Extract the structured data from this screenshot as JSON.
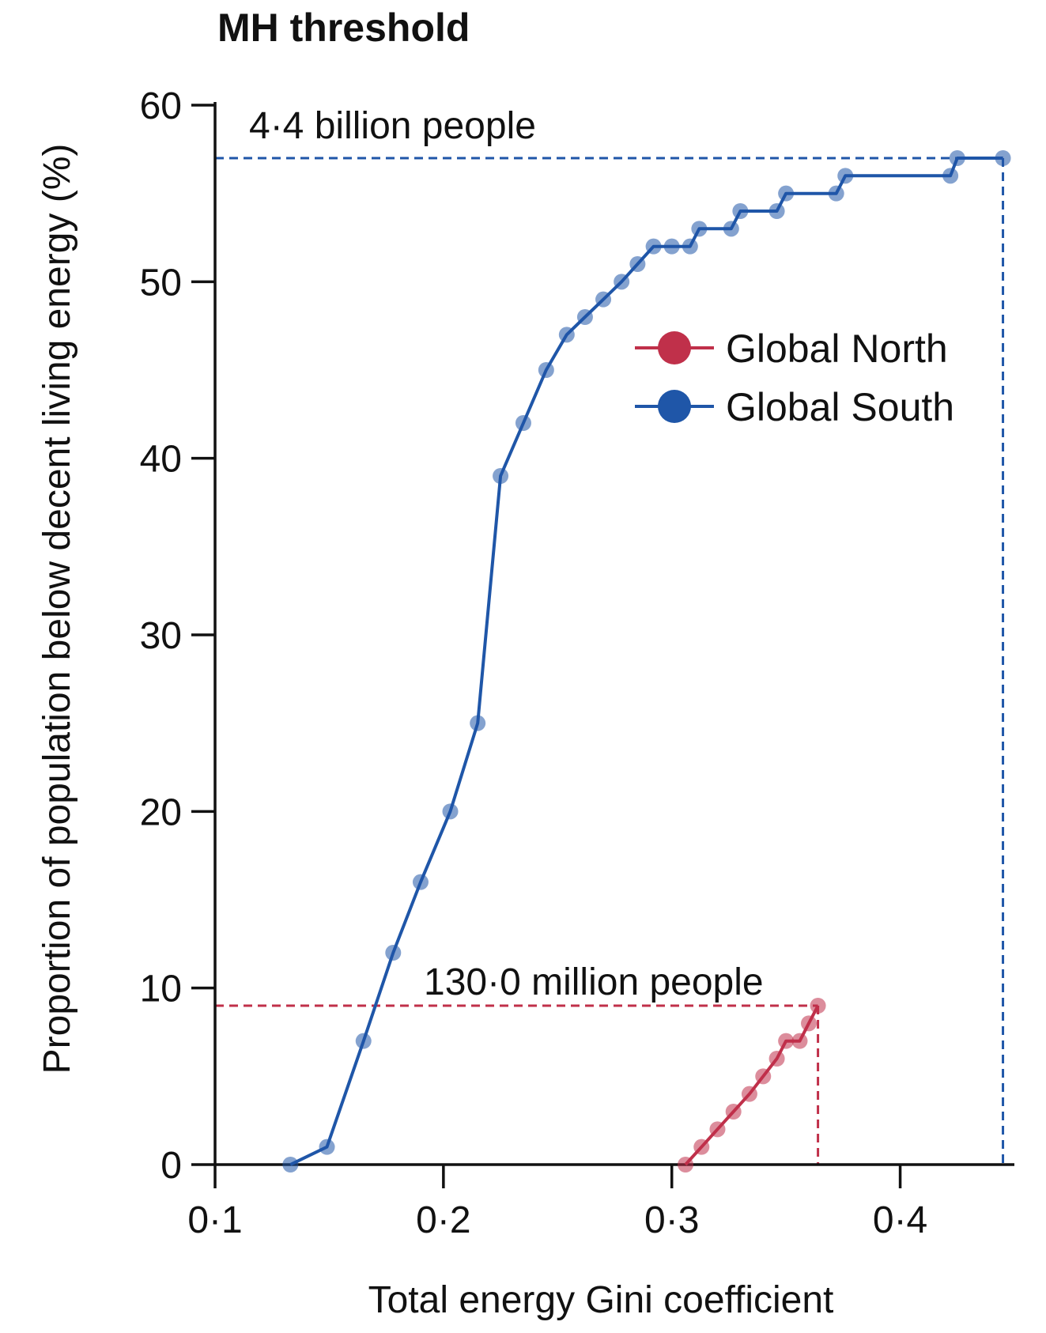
{
  "chart_data": {
    "type": "line",
    "title": "MH threshold",
    "xlabel": "Total energy Gini coefficient",
    "ylabel": "Proportion of population below decent living energy (%)",
    "xlim": [
      0.1,
      0.45
    ],
    "ylim": [
      0,
      60
    ],
    "x_ticks": [
      0.1,
      0.2,
      0.3,
      0.4
    ],
    "x_tick_labels": [
      "0·1",
      "0·2",
      "0·3",
      "0·4"
    ],
    "y_ticks": [
      0,
      10,
      20,
      30,
      40,
      50,
      60
    ],
    "y_tick_labels": [
      "0",
      "10",
      "20",
      "30",
      "40",
      "50",
      "60"
    ],
    "grid": false,
    "legend_position": "top-right",
    "series": [
      {
        "name": "Global North",
        "color": "#c0304a",
        "points": [
          [
            0.306,
            0
          ],
          [
            0.313,
            1
          ],
          [
            0.32,
            2
          ],
          [
            0.327,
            3
          ],
          [
            0.334,
            4
          ],
          [
            0.34,
            5
          ],
          [
            0.346,
            6
          ],
          [
            0.35,
            7
          ],
          [
            0.356,
            7
          ],
          [
            0.36,
            8
          ],
          [
            0.364,
            9
          ]
        ]
      },
      {
        "name": "Global South",
        "color": "#1f56a8",
        "points": [
          [
            0.133,
            0
          ],
          [
            0.149,
            1
          ],
          [
            0.165,
            7
          ],
          [
            0.178,
            12
          ],
          [
            0.19,
            16
          ],
          [
            0.203,
            20
          ],
          [
            0.215,
            25
          ],
          [
            0.225,
            39
          ],
          [
            0.235,
            42
          ],
          [
            0.245,
            45
          ],
          [
            0.254,
            47
          ],
          [
            0.262,
            48
          ],
          [
            0.27,
            49
          ],
          [
            0.278,
            50
          ],
          [
            0.285,
            51
          ],
          [
            0.292,
            52
          ],
          [
            0.3,
            52
          ],
          [
            0.308,
            52
          ],
          [
            0.312,
            53
          ],
          [
            0.326,
            53
          ],
          [
            0.33,
            54
          ],
          [
            0.346,
            54
          ],
          [
            0.35,
            55
          ],
          [
            0.372,
            55
          ],
          [
            0.376,
            56
          ],
          [
            0.422,
            56
          ],
          [
            0.425,
            57
          ],
          [
            0.445,
            57
          ]
        ]
      }
    ],
    "annotations": [
      {
        "text": "4·4 billion people",
        "series": "Global South",
        "x": 0.445,
        "y": 57
      },
      {
        "text": "130·0 million people",
        "series": "Global North",
        "x": 0.364,
        "y": 9
      }
    ]
  }
}
